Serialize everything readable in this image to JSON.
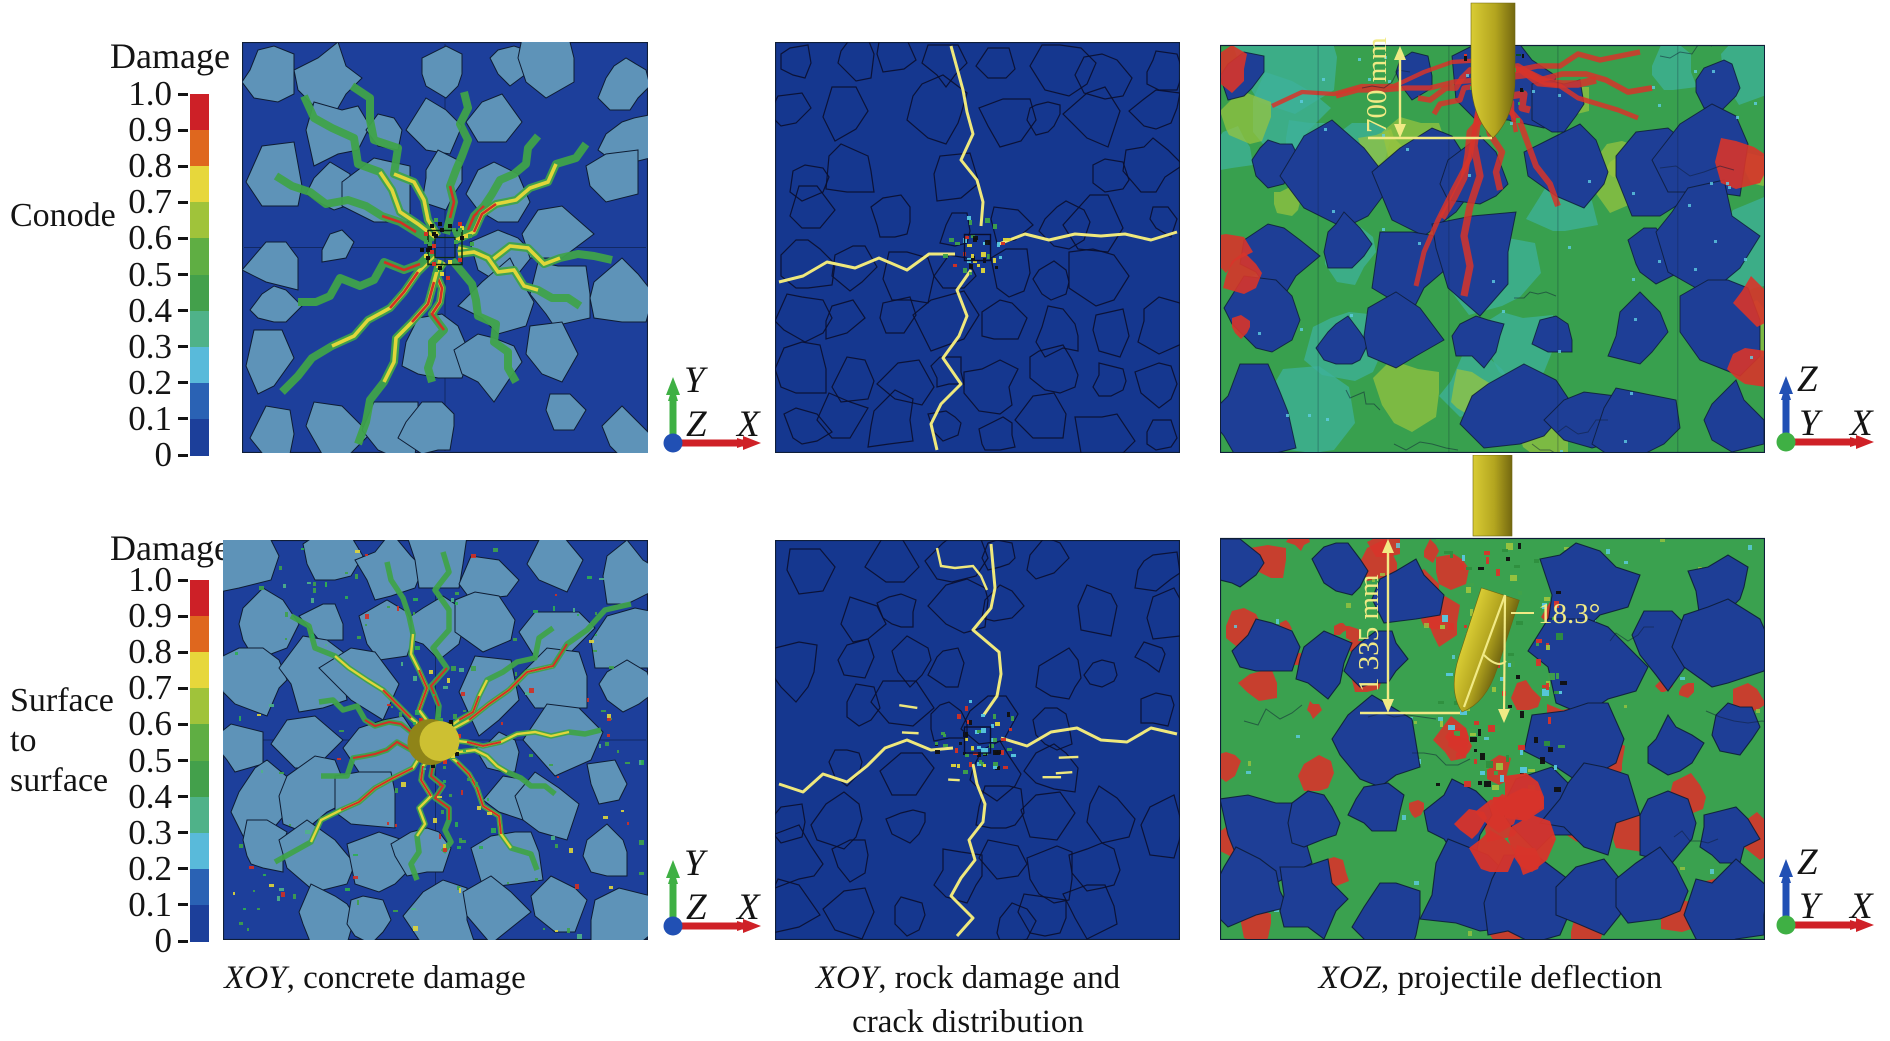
{
  "colorbar": {
    "title": "Damage",
    "ticks": [
      "1.0",
      "0.9",
      "0.8",
      "0.7",
      "0.6",
      "0.5",
      "0.4",
      "0.3",
      "0.2",
      "0.1",
      "0"
    ],
    "segment_colors": [
      "#cd2027",
      "#df671e",
      "#e7d73b",
      "#a0c33a",
      "#5fae43",
      "#43a04b",
      "#4fb289",
      "#59bada",
      "#2a62b4",
      "#1c3f9a"
    ]
  },
  "row_labels": {
    "row1": "Conode",
    "row2_lines": [
      "Surface",
      "to",
      "surface"
    ]
  },
  "captions": {
    "col1": {
      "italic": "XOY",
      "rest": ", concrete damage"
    },
    "col2": {
      "italic": "XOY",
      "rest": ", rock damage and",
      "line2": "crack distribution"
    },
    "col3": {
      "italic": "XOZ",
      "rest": ", projectile deflection"
    }
  },
  "axis_triads": {
    "xy": {
      "up": "Y",
      "origin": "Z",
      "right": "X"
    },
    "xz": {
      "up": "Z",
      "origin": "Y",
      "right": "X"
    }
  },
  "annotations": {
    "penetration_depth_top": "700 mm",
    "penetration_depth_bottom": "1 335 mm",
    "deflection_angle": "18.3°"
  },
  "palette": {
    "annotation_yellow": "#f1ea85",
    "projectile_olive": "#b3a51f",
    "axis_x_red": "#cf2127",
    "axis_y_green": "#3fb044",
    "axis_z_blue": "#2150b4",
    "aggregate_blue": "#5e93b8",
    "mortar_navy": "#1d3f9b",
    "rock_navy": "#15378f",
    "crack_yellow": "#efe87c",
    "damage_green": "#3fa24a",
    "damage_red": "#d23024"
  }
}
